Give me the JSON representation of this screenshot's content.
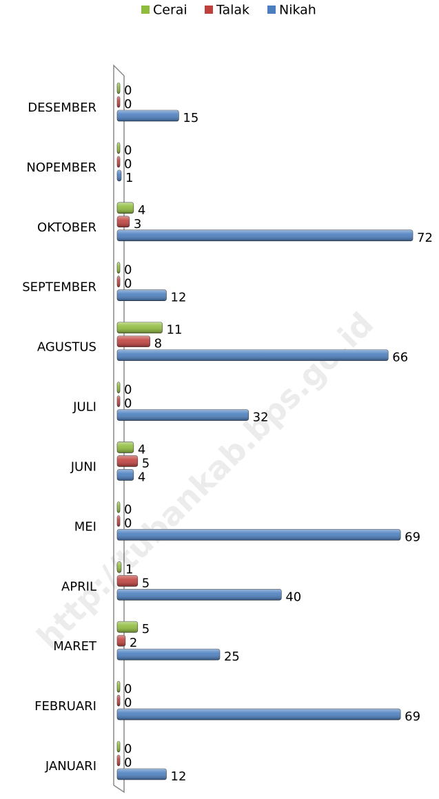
{
  "chart_data": {
    "type": "bar",
    "orientation": "horizontal",
    "categories": [
      "JANUARI",
      "FEBRUARI",
      "MARET",
      "APRIL",
      "MEI",
      "JUNI",
      "JULI",
      "AGUSTUS",
      "SEPTEMBER",
      "OKTOBER",
      "NOPEMBER",
      "DESEMBER"
    ],
    "series": [
      {
        "name": "Cerai",
        "color": "#8fbc3c",
        "values": [
          0,
          0,
          5,
          1,
          0,
          4,
          0,
          11,
          0,
          4,
          0,
          0
        ]
      },
      {
        "name": "Talak",
        "color": "#c0403d",
        "values": [
          0,
          0,
          2,
          5,
          0,
          5,
          0,
          8,
          0,
          3,
          0,
          0
        ]
      },
      {
        "name": "Nikah",
        "color": "#4a7ebf",
        "values": [
          12,
          69,
          25,
          40,
          69,
          4,
          32,
          66,
          12,
          72,
          1,
          15
        ]
      }
    ],
    "legend": "top",
    "watermark": "http://tubankab.bps.go.id"
  }
}
